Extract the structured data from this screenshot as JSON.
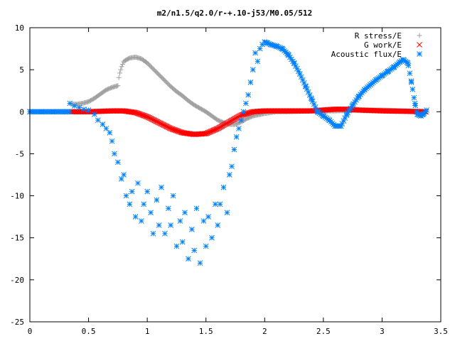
{
  "chart_data": {
    "type": "scatter",
    "title": "m2/n1.5/q2.0/r-+.10-j53/M0.05/512",
    "xlabel": "",
    "ylabel": "",
    "xlim": [
      0,
      3.5
    ],
    "ylim": [
      -25,
      10
    ],
    "x_ticks": [
      "0",
      "0.5",
      "1",
      "1.5",
      "2",
      "2.5",
      "3",
      "3.5"
    ],
    "y_ticks": [
      "10",
      "5",
      "0",
      "-5",
      "-10",
      "-15",
      "-20",
      "-25"
    ],
    "grid": false,
    "legend_position": "top-right",
    "series": [
      {
        "name": "R stress/E",
        "marker": "plus",
        "color": "#a0a0a0",
        "x": [
          0.35,
          0.4,
          0.45,
          0.5,
          0.55,
          0.6,
          0.65,
          0.7,
          0.75,
          0.76,
          0.78,
          0.8,
          0.85,
          0.9,
          0.95,
          1.0,
          1.05,
          1.1,
          1.15,
          1.2,
          1.25,
          1.3,
          1.35,
          1.4,
          1.45,
          1.5,
          1.55,
          1.6,
          1.65,
          1.7,
          1.75,
          1.8,
          1.85,
          1.9,
          2.0,
          2.1,
          2.2,
          2.4,
          2.6,
          2.8,
          3.0,
          3.2,
          3.38
        ],
        "y": [
          0.9,
          0.9,
          1.0,
          1.2,
          1.6,
          2.1,
          2.6,
          2.9,
          3.1,
          4.3,
          5.3,
          6.0,
          6.4,
          6.5,
          6.3,
          5.8,
          5.1,
          4.4,
          3.7,
          3.0,
          2.4,
          1.9,
          1.3,
          0.8,
          0.4,
          0.0,
          -0.5,
          -1.0,
          -1.3,
          -1.5,
          -1.5,
          -1.2,
          -0.8,
          -0.5,
          -0.2,
          0.0,
          0.0,
          0.1,
          0.1,
          0.2,
          0.2,
          0.1,
          0.0
        ]
      },
      {
        "name": "G work/E",
        "marker": "cross",
        "color": "#ff0000",
        "x": [
          0.35,
          0.5,
          0.6,
          0.7,
          0.8,
          0.9,
          1.0,
          1.1,
          1.2,
          1.3,
          1.4,
          1.5,
          1.6,
          1.7,
          1.8,
          1.9,
          2.0,
          2.2,
          2.4,
          2.6,
          2.7,
          2.8,
          3.0,
          3.2,
          3.38
        ],
        "y": [
          0.0,
          0.0,
          0.05,
          0.1,
          0.1,
          -0.1,
          -0.6,
          -1.3,
          -2.0,
          -2.5,
          -2.7,
          -2.6,
          -2.0,
          -1.2,
          -0.4,
          0.0,
          0.1,
          0.1,
          0.1,
          0.3,
          0.3,
          0.2,
          0.1,
          0.05,
          0.0
        ]
      },
      {
        "name": "Acoustic flux/E",
        "marker": "star",
        "color": "#0080ff",
        "x": [
          0.0,
          0.1,
          0.2,
          0.3,
          0.34,
          0.38,
          0.42,
          0.46,
          0.5,
          0.55,
          0.58,
          0.62,
          0.65,
          0.68,
          0.7,
          0.72,
          0.75,
          0.78,
          0.8,
          0.82,
          0.85,
          0.87,
          0.9,
          0.92,
          0.95,
          0.97,
          1.0,
          1.03,
          1.05,
          1.08,
          1.1,
          1.12,
          1.15,
          1.18,
          1.2,
          1.22,
          1.25,
          1.28,
          1.3,
          1.32,
          1.35,
          1.38,
          1.4,
          1.42,
          1.45,
          1.48,
          1.5,
          1.52,
          1.55,
          1.58,
          1.6,
          1.62,
          1.65,
          1.68,
          1.7,
          1.72,
          1.74,
          1.76,
          1.78,
          1.8,
          1.82,
          1.84,
          1.86,
          1.88,
          1.9,
          1.92,
          1.94,
          1.96,
          1.98,
          2.0,
          2.02,
          2.05,
          2.1,
          2.15,
          2.2,
          2.25,
          2.3,
          2.35,
          2.4,
          2.45,
          2.5,
          2.55,
          2.6,
          2.65,
          2.7,
          2.75,
          2.8,
          2.85,
          2.9,
          2.95,
          3.0,
          3.05,
          3.1,
          3.15,
          3.18,
          3.22,
          3.25,
          3.28,
          3.3,
          3.33,
          3.35,
          3.38
        ],
        "y": [
          0.0,
          0.0,
          0.0,
          0.0,
          1.0,
          0.7,
          0.5,
          0.3,
          0.2,
          -0.3,
          -1.0,
          -1.5,
          -2.0,
          -2.5,
          -3.5,
          -5.0,
          -6.0,
          -8.0,
          -7.5,
          -10.0,
          -11.0,
          -9.5,
          -12.5,
          -8.5,
          -13.0,
          -11.0,
          -9.5,
          -12.0,
          -14.5,
          -10.5,
          -13.5,
          -9.0,
          -14.5,
          -11.5,
          -13.5,
          -10.0,
          -16.0,
          -13.0,
          -15.5,
          -12.0,
          -17.5,
          -14.0,
          -16.5,
          -11.5,
          -18.0,
          -13.0,
          -16.0,
          -12.5,
          -15.0,
          -11.0,
          -13.5,
          -11.0,
          -9.0,
          -12.0,
          -7.5,
          -6.5,
          -4.5,
          -3.0,
          -2.0,
          -1.0,
          0.0,
          1.0,
          2.0,
          3.5,
          5.0,
          7.0,
          6.0,
          7.5,
          8.0,
          8.3,
          8.2,
          8.0,
          7.8,
          7.5,
          6.8,
          5.8,
          4.5,
          3.0,
          1.5,
          0.0,
          -0.5,
          -1.0,
          -1.7,
          -1.7,
          -0.3,
          0.8,
          1.8,
          2.6,
          3.2,
          3.8,
          4.3,
          4.8,
          5.3,
          5.9,
          6.2,
          5.8,
          3.5,
          1.0,
          -0.3,
          -0.5,
          -0.3,
          0.2
        ]
      }
    ]
  }
}
